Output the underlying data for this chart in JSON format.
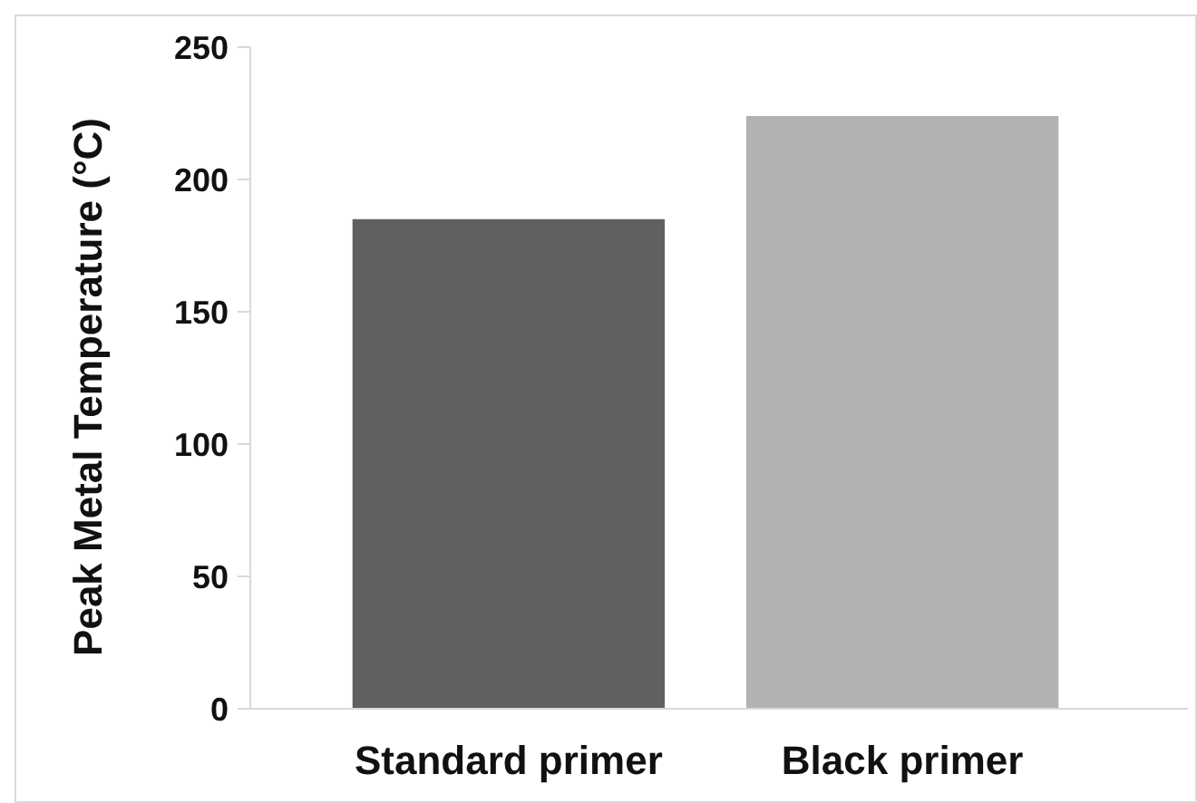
{
  "chart_data": {
    "type": "bar",
    "ylabel": "Peak Metal Temperature (°C)",
    "categories": [
      "Standard primer",
      "Black primer"
    ],
    "values": [
      185,
      224
    ],
    "colors": [
      "#606060",
      "#b2b2b2"
    ],
    "ylim": [
      0,
      250
    ],
    "yticks": [
      0,
      50,
      100,
      150,
      200,
      250
    ],
    "grid": false
  }
}
